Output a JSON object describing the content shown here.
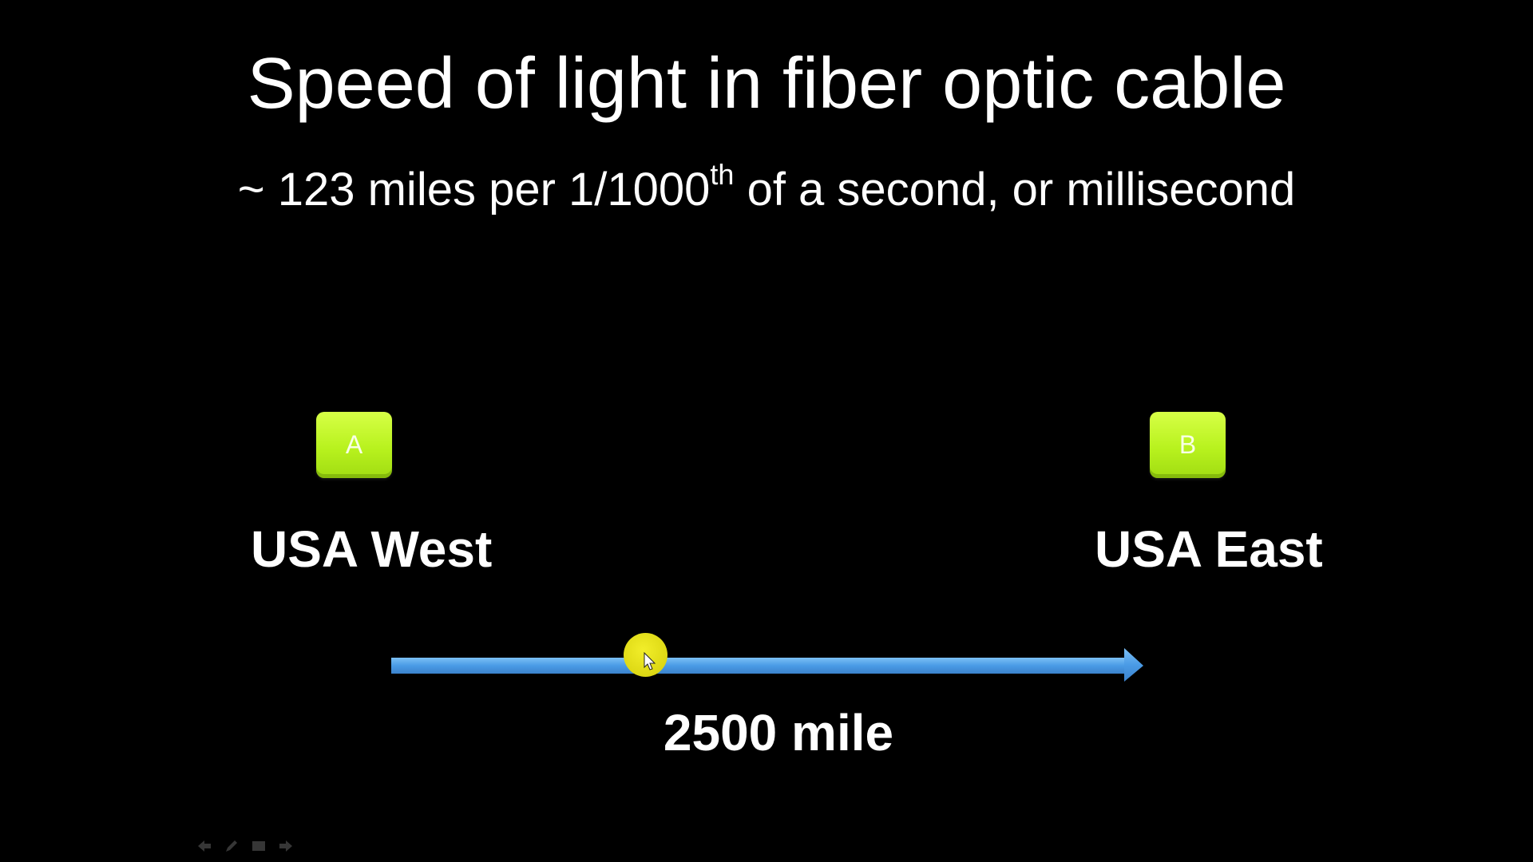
{
  "slide": {
    "title": "Speed of light in fiber optic cable",
    "subtitle": {
      "before": "~ 123 miles per 1/1000",
      "superscript": "th",
      "after": " of a second, or millisecond"
    },
    "node_a": {
      "label": "A"
    },
    "node_b": {
      "label": "B"
    },
    "location_west": "USA West",
    "location_east": "USA East",
    "distance": "2500 mile"
  },
  "nav": {
    "buttons": [
      {
        "icon": "back-arrow-icon"
      },
      {
        "icon": "pen-icon"
      },
      {
        "icon": "slide-menu-icon"
      },
      {
        "icon": "forward-arrow-icon"
      }
    ]
  },
  "colors": {
    "background": "#000000",
    "node_fill": "#b8f21e",
    "arrow_fill": "#4a9be6",
    "cursor_highlight": "#e3de18"
  }
}
